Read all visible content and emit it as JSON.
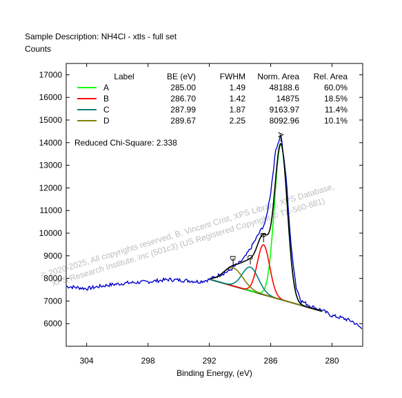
{
  "header": {
    "description": "Sample Description:  NH4Cl - xtls - full set",
    "counts_label": "Counts"
  },
  "chart_data": {
    "type": "line",
    "title": "",
    "xlabel": "Binding Energy, (eV)",
    "ylabel": "Counts",
    "xlim": [
      306,
      277
    ],
    "ylim": [
      5000,
      17500
    ],
    "x_reversed": true,
    "x_ticks": [
      304,
      298,
      292,
      286,
      280
    ],
    "y_ticks": [
      6000,
      7000,
      8000,
      9000,
      10000,
      11000,
      12000,
      13000,
      14000,
      15000,
      16000,
      17000
    ],
    "legend": {
      "headers": [
        "Label",
        "BE (eV)",
        "FWHM",
        "Norm. Area",
        "Rel. Area"
      ],
      "rows": [
        {
          "label": "A",
          "be": "285.00",
          "fwhm": "1.49",
          "norm_area": "48188.6",
          "rel_area": "60.0%",
          "color": "#00ff00"
        },
        {
          "label": "B",
          "be": "286.70",
          "fwhm": "1.42",
          "norm_area": "14875",
          "rel_area": "18.5%",
          "color": "#ff0000"
        },
        {
          "label": "C",
          "be": "287.99",
          "fwhm": "1.87",
          "norm_area": "9163.97",
          "rel_area": "11.4%",
          "color": "#008080"
        },
        {
          "label": "D",
          "be": "289.67",
          "fwhm": "2.25",
          "norm_area": "8092.96",
          "rel_area": "10.1%",
          "color": "#808000"
        }
      ]
    },
    "chi_square": "Reduced Chi-Square: 2.338",
    "background_line": {
      "x": [
        291.9,
        281.0
      ],
      "y": [
        7950,
        6550
      ]
    },
    "peaks": [
      {
        "label": "A",
        "center": 285.0,
        "fwhm": 1.49,
        "height": 6850,
        "color": "#00ff00"
      },
      {
        "label": "B",
        "center": 286.7,
        "fwhm": 1.42,
        "height": 2200,
        "color": "#ff0000"
      },
      {
        "label": "C",
        "center": 287.99,
        "fwhm": 1.87,
        "height": 1050,
        "color": "#008080"
      },
      {
        "label": "D",
        "center": 289.67,
        "fwhm": 2.25,
        "height": 800,
        "color": "#808000"
      }
    ],
    "spectrum": {
      "color": "#0000cc",
      "x": [
        306,
        304,
        302,
        300,
        298,
        296,
        294,
        293,
        292,
        291,
        290,
        289.5,
        289,
        288.5,
        288,
        287.5,
        287,
        286.5,
        286,
        285.5,
        285,
        284.5,
        284,
        283.5,
        283,
        282,
        281,
        280,
        279,
        278,
        277
      ],
      "y": [
        7650,
        7550,
        7700,
        7800,
        7850,
        7950,
        7900,
        7850,
        7950,
        8150,
        8350,
        8550,
        8700,
        8950,
        9300,
        9700,
        10100,
        10500,
        11800,
        13700,
        14350,
        12500,
        9400,
        7600,
        7000,
        6750,
        6600,
        6350,
        6250,
        6100,
        5750
      ]
    },
    "peak_labels": [
      "A",
      "B",
      "C",
      "D"
    ],
    "envelope_color": "#000000",
    "grid": false,
    "legend_position": "top"
  },
  "watermark": {
    "line1": "© 2020-2025,  All copyrights reserved,   B. Vincent Crist,  XPS Library, XPS Database,",
    "line2": "XPS Research Institute, Inc (501c3)   (US Registered Copyright © TX-560-881)"
  }
}
